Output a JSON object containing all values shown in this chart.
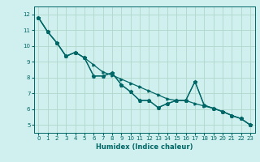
{
  "xlabel": "Humidex (Indice chaleur)",
  "background_color": "#cff0ee",
  "grid_color": "#b0d8cc",
  "line_color": "#006666",
  "xlim": [
    -0.5,
    23.5
  ],
  "ylim": [
    4.5,
    12.5
  ],
  "xticks": [
    0,
    1,
    2,
    3,
    4,
    5,
    6,
    7,
    8,
    9,
    10,
    11,
    12,
    13,
    14,
    15,
    16,
    17,
    18,
    19,
    20,
    21,
    22,
    23
  ],
  "yticks": [
    5,
    6,
    7,
    8,
    9,
    10,
    11,
    12
  ],
  "series1_x": [
    0,
    1,
    2,
    3,
    4,
    5,
    6,
    7,
    8,
    9,
    10,
    11,
    12,
    13,
    14,
    15,
    16,
    17,
    18,
    19,
    20,
    21,
    22,
    23
  ],
  "series1_y": [
    11.8,
    10.9,
    10.2,
    9.35,
    9.6,
    9.25,
    8.8,
    8.35,
    8.15,
    7.9,
    7.65,
    7.4,
    7.15,
    6.9,
    6.65,
    6.55,
    6.55,
    6.35,
    6.2,
    6.05,
    5.85,
    5.6,
    5.4,
    5.0
  ],
  "series2_x": [
    0,
    1,
    2,
    3,
    4,
    5,
    6,
    7,
    8,
    9,
    10,
    11,
    12,
    13,
    14,
    15,
    16,
    17,
    18,
    19,
    20,
    21,
    22,
    23
  ],
  "series2_y": [
    11.8,
    10.9,
    10.2,
    9.35,
    9.6,
    9.25,
    8.1,
    8.1,
    8.3,
    7.55,
    7.1,
    6.55,
    6.55,
    6.1,
    6.35,
    6.55,
    6.55,
    7.75,
    6.25,
    6.05,
    5.85,
    5.6,
    5.4,
    5.0
  ],
  "series3_x": [
    0,
    1,
    2,
    3,
    4,
    5,
    6,
    7,
    8,
    9,
    10,
    11,
    12,
    13,
    14,
    15,
    16,
    17,
    18,
    19,
    20,
    21,
    22,
    23
  ],
  "series3_y": [
    11.8,
    10.9,
    10.2,
    9.35,
    9.6,
    9.25,
    8.1,
    8.1,
    8.3,
    7.55,
    7.1,
    6.55,
    6.55,
    6.1,
    6.35,
    6.55,
    6.55,
    7.75,
    6.25,
    6.05,
    5.85,
    5.6,
    5.4,
    5.0
  ]
}
